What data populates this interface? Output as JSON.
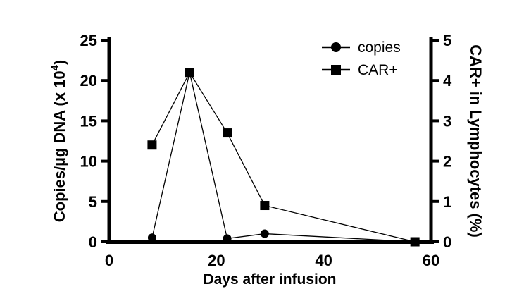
{
  "figure": {
    "background": "#ffffff",
    "foreground": "#000000"
  },
  "chart_data": {
    "type": "line",
    "title": "",
    "xlabel": "Days after infusion",
    "ylabel_left": "Copies/µg DNA (x 10⁴)",
    "ylabel_left_parts": {
      "base": "Copies/µg DNA (x 10",
      "sup": "4",
      "close": ")"
    },
    "ylabel_right": "CAR+ in Lymphocytes (%)",
    "xlim": [
      0,
      60
    ],
    "ylim_left": [
      0,
      25
    ],
    "ylim_right": [
      0,
      5
    ],
    "xticks": [
      0,
      20,
      40,
      60
    ],
    "yticks_left": [
      0,
      5,
      10,
      15,
      20,
      25
    ],
    "yticks_right": [
      0,
      1,
      2,
      3,
      4,
      5
    ],
    "grid": false,
    "legend_position": "top-right-inside",
    "series": [
      {
        "name": "copies",
        "marker": "circle",
        "axis": "left",
        "x": [
          8,
          15,
          22,
          29,
          57
        ],
        "y": [
          0.5,
          21,
          0.4,
          1.0,
          0
        ]
      },
      {
        "name": "CAR+",
        "marker": "square",
        "axis": "right",
        "x": [
          8,
          15,
          22,
          29,
          57
        ],
        "y": [
          2.4,
          4.2,
          2.7,
          0.9,
          0
        ]
      }
    ],
    "legend": [
      {
        "label": "copies",
        "marker": "circle"
      },
      {
        "label": "CAR+",
        "marker": "square"
      }
    ]
  }
}
